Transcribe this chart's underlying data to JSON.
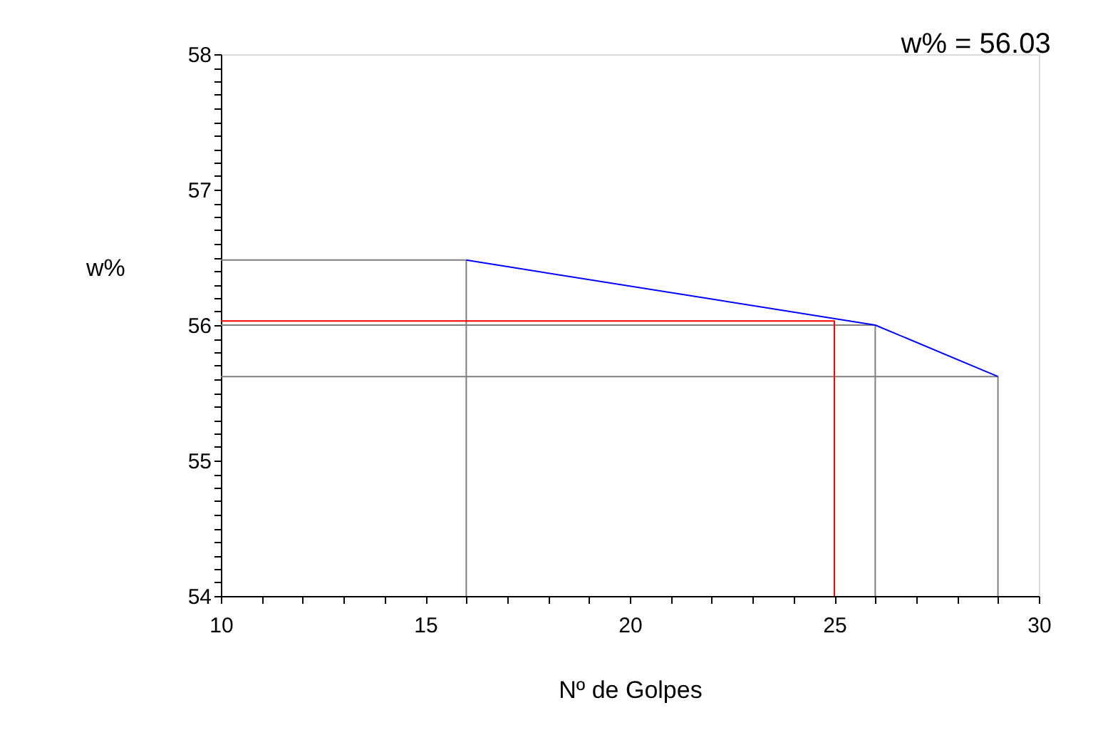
{
  "chart_data": {
    "type": "line",
    "title": "w% = 56.03",
    "xlabel": "Nº de Golpes",
    "ylabel": "w%",
    "xlim": [
      10,
      30
    ],
    "ylim": [
      54,
      58
    ],
    "xticks": [
      10,
      {
        "value": 11,
        "label": null
      },
      {
        "value": 12,
        "label": null
      },
      {
        "value": 13,
        "label": null
      },
      {
        "value": 14,
        "label": null
      },
      15,
      {
        "value": 16,
        "label": null
      },
      {
        "value": 17,
        "label": null
      },
      {
        "value": 18,
        "label": null
      },
      {
        "value": 19,
        "label": null
      },
      20,
      {
        "value": 21,
        "label": null
      },
      {
        "value": 22,
        "label": null
      },
      {
        "value": 23,
        "label": null
      },
      {
        "value": 24,
        "label": null
      },
      25,
      {
        "value": 26,
        "label": null
      },
      {
        "value": 27,
        "label": null
      },
      {
        "value": 28,
        "label": null
      },
      {
        "value": 29,
        "label": null
      },
      30
    ],
    "yticks": [
      54,
      {
        "value": 54.1,
        "label": null
      },
      {
        "value": 54.2,
        "label": null
      },
      {
        "value": 54.3,
        "label": null
      },
      {
        "value": 54.4,
        "label": null
      },
      {
        "value": 54.5,
        "label": null
      },
      {
        "value": 54.6,
        "label": null
      },
      {
        "value": 54.7,
        "label": null
      },
      {
        "value": 54.8,
        "label": null
      },
      {
        "value": 54.9,
        "label": null
      },
      55,
      {
        "value": 55.1,
        "label": null
      },
      {
        "value": 55.2,
        "label": null
      },
      {
        "value": 55.3,
        "label": null
      },
      {
        "value": 55.4,
        "label": null
      },
      {
        "value": 55.5,
        "label": null
      },
      {
        "value": 55.6,
        "label": null
      },
      {
        "value": 55.7,
        "label": null
      },
      {
        "value": 55.8,
        "label": null
      },
      {
        "value": 55.9,
        "label": null
      },
      56,
      {
        "value": 56.1,
        "label": null
      },
      {
        "value": 56.2,
        "label": null
      },
      {
        "value": 56.3,
        "label": null
      },
      {
        "value": 56.4,
        "label": null
      },
      {
        "value": 56.5,
        "label": null
      },
      {
        "value": 56.6,
        "label": null
      },
      {
        "value": 56.7,
        "label": null
      },
      {
        "value": 56.8,
        "label": null
      },
      {
        "value": 56.9,
        "label": null
      },
      57,
      {
        "value": 57.1,
        "label": null
      },
      {
        "value": 57.2,
        "label": null
      },
      {
        "value": 57.3,
        "label": null
      },
      {
        "value": 57.4,
        "label": null
      },
      {
        "value": 57.5,
        "label": null
      },
      {
        "value": 57.6,
        "label": null
      },
      {
        "value": 57.7,
        "label": null
      },
      {
        "value": 57.8,
        "label": null
      },
      {
        "value": 57.9,
        "label": null
      },
      58
    ],
    "line_style": "solid",
    "marker": "none",
    "series": [
      {
        "color": "#808080",
        "x": [
          10,
          16,
          16
        ],
        "values": [
          56.48,
          56.48,
          54
        ]
      },
      {
        "color": "#808080",
        "x": [
          10,
          26,
          26
        ],
        "values": [
          56.0,
          56.0,
          54
        ]
      },
      {
        "color": "#808080",
        "x": [
          10,
          29,
          29
        ],
        "values": [
          55.62,
          55.62,
          54
        ]
      },
      {
        "color": "#ff0000",
        "x": [
          10,
          25,
          25
        ],
        "values": [
          56.03,
          56.03,
          54
        ]
      },
      {
        "color": "#0000ff",
        "x": [
          16,
          26,
          29
        ],
        "values": [
          56.48,
          56.0,
          55.62
        ]
      }
    ]
  }
}
